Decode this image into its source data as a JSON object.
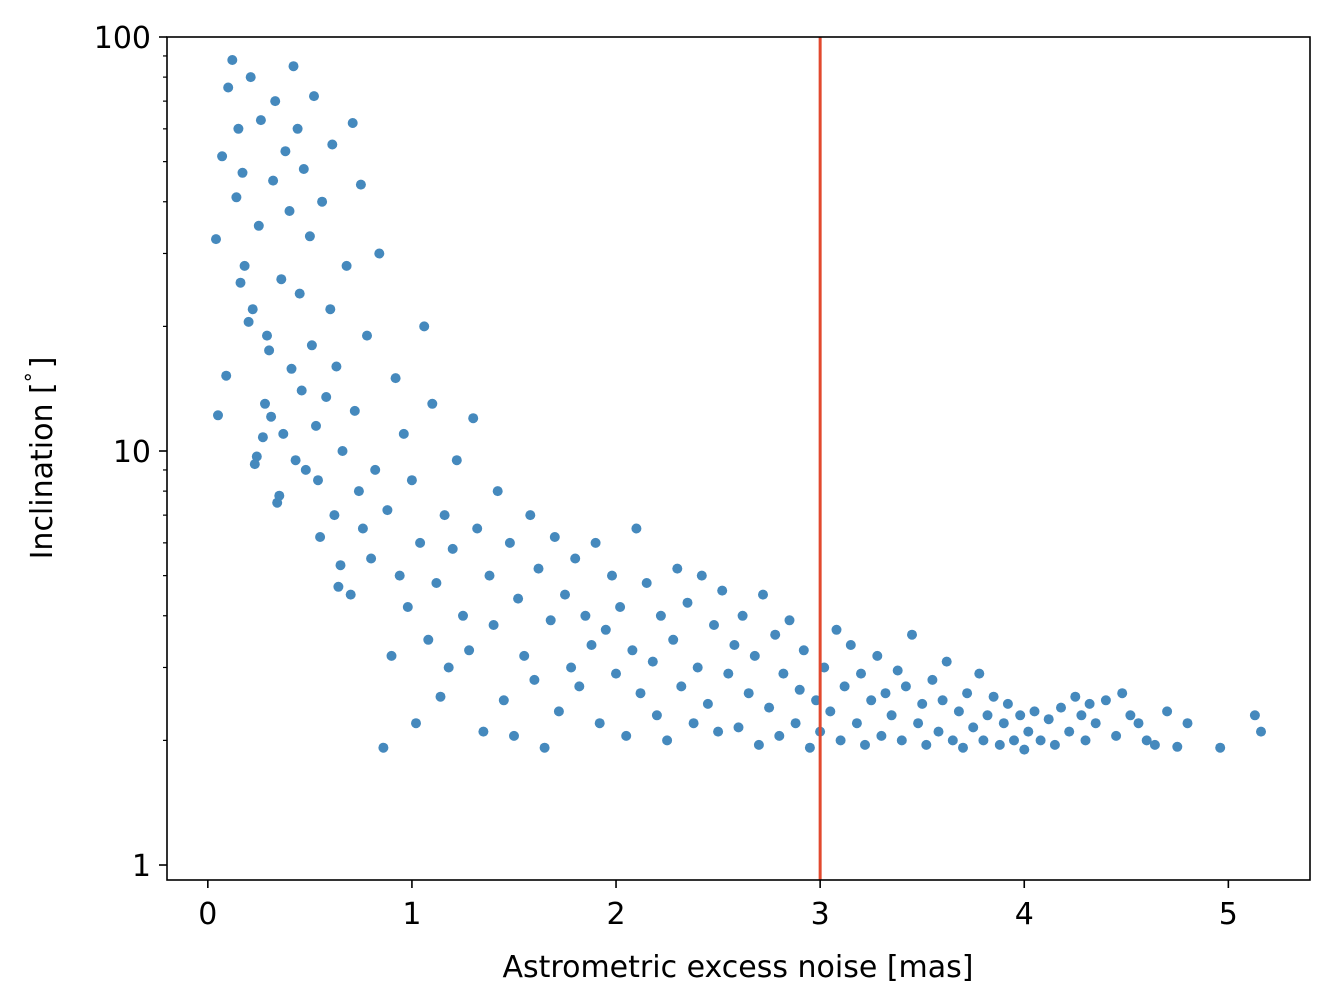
{
  "chart_data": {
    "type": "scatter",
    "xlabel": "Astrometric excess noise [mas]",
    "ylabel": "Inclination [$^\\circ$]",
    "ylabel_parts": {
      "main": "Inclination [",
      "deg": "°",
      "close": "]"
    },
    "xlim": [
      -0.2,
      5.4
    ],
    "ylim": [
      0.92,
      100
    ],
    "yscale": "log",
    "xticks": [
      0,
      1,
      2,
      3,
      4,
      5
    ],
    "xtick_labels": [
      "0",
      "1",
      "2",
      "3",
      "4",
      "5"
    ],
    "yticks": [
      1,
      10,
      100
    ],
    "ytick_labels": [
      "1",
      "10",
      "100"
    ],
    "grid": false,
    "marker_color": "#4589bd",
    "vline": {
      "x": 3.0,
      "color": "#e2492e"
    },
    "series": [
      {
        "points": [
          [
            0.05,
            12.2
          ],
          [
            0.04,
            32.5
          ],
          [
            0.07,
            51.5
          ],
          [
            0.09,
            15.2
          ],
          [
            0.1,
            75.5
          ],
          [
            0.12,
            88.0
          ],
          [
            0.14,
            41.0
          ],
          [
            0.15,
            60.0
          ],
          [
            0.16,
            25.5
          ],
          [
            0.17,
            47.0
          ],
          [
            0.18,
            28.0
          ],
          [
            0.2,
            20.5
          ],
          [
            0.21,
            80.0
          ],
          [
            0.22,
            22.0
          ],
          [
            0.23,
            9.3
          ],
          [
            0.24,
            9.7
          ],
          [
            0.25,
            35.0
          ],
          [
            0.26,
            63.0
          ],
          [
            0.27,
            10.8
          ],
          [
            0.28,
            13.0
          ],
          [
            0.29,
            19.0
          ],
          [
            0.3,
            17.5
          ],
          [
            0.31,
            12.1
          ],
          [
            0.32,
            45.0
          ],
          [
            0.33,
            70.0
          ],
          [
            0.34,
            7.5
          ],
          [
            0.35,
            7.8
          ],
          [
            0.36,
            26.0
          ],
          [
            0.37,
            11.0
          ],
          [
            0.38,
            53.0
          ],
          [
            0.4,
            38.0
          ],
          [
            0.41,
            15.8
          ],
          [
            0.42,
            85.0
          ],
          [
            0.43,
            9.5
          ],
          [
            0.44,
            60.0
          ],
          [
            0.45,
            24.0
          ],
          [
            0.46,
            14.0
          ],
          [
            0.47,
            48.0
          ],
          [
            0.48,
            9.0
          ],
          [
            0.5,
            33.0
          ],
          [
            0.51,
            18.0
          ],
          [
            0.52,
            72.0
          ],
          [
            0.53,
            11.5
          ],
          [
            0.54,
            8.5
          ],
          [
            0.55,
            6.2
          ],
          [
            0.56,
            40.0
          ],
          [
            0.58,
            13.5
          ],
          [
            0.6,
            22.0
          ],
          [
            0.61,
            55.0
          ],
          [
            0.62,
            7.0
          ],
          [
            0.63,
            16.0
          ],
          [
            0.64,
            4.7
          ],
          [
            0.65,
            5.3
          ],
          [
            0.66,
            10.0
          ],
          [
            0.68,
            28.0
          ],
          [
            0.7,
            4.5
          ],
          [
            0.71,
            62.0
          ],
          [
            0.72,
            12.5
          ],
          [
            0.74,
            8.0
          ],
          [
            0.75,
            44.0
          ],
          [
            0.76,
            6.5
          ],
          [
            0.78,
            19.0
          ],
          [
            0.8,
            5.5
          ],
          [
            0.82,
            9.0
          ],
          [
            0.84,
            30.0
          ],
          [
            0.86,
            1.92
          ],
          [
            0.88,
            7.2
          ],
          [
            0.9,
            3.2
          ],
          [
            0.92,
            15.0
          ],
          [
            0.94,
            5.0
          ],
          [
            0.96,
            11.0
          ],
          [
            0.98,
            4.2
          ],
          [
            1.0,
            8.5
          ],
          [
            1.02,
            2.2
          ],
          [
            1.04,
            6.0
          ],
          [
            1.06,
            20.0
          ],
          [
            1.08,
            3.5
          ],
          [
            1.1,
            13.0
          ],
          [
            1.12,
            4.8
          ],
          [
            1.14,
            2.55
          ],
          [
            1.16,
            7.0
          ],
          [
            1.18,
            3.0
          ],
          [
            1.2,
            5.8
          ],
          [
            1.22,
            9.5
          ],
          [
            1.25,
            4.0
          ],
          [
            1.28,
            3.3
          ],
          [
            1.3,
            12.0
          ],
          [
            1.32,
            6.5
          ],
          [
            1.35,
            2.1
          ],
          [
            1.38,
            5.0
          ],
          [
            1.4,
            3.8
          ],
          [
            1.42,
            8.0
          ],
          [
            1.45,
            2.5
          ],
          [
            1.48,
            6.0
          ],
          [
            1.5,
            2.05
          ],
          [
            1.52,
            4.4
          ],
          [
            1.55,
            3.2
          ],
          [
            1.58,
            7.0
          ],
          [
            1.6,
            2.8
          ],
          [
            1.62,
            5.2
          ],
          [
            1.65,
            1.92
          ],
          [
            1.68,
            3.9
          ],
          [
            1.7,
            6.2
          ],
          [
            1.72,
            2.35
          ],
          [
            1.75,
            4.5
          ],
          [
            1.78,
            3.0
          ],
          [
            1.8,
            5.5
          ],
          [
            1.82,
            2.7
          ],
          [
            1.85,
            4.0
          ],
          [
            1.88,
            3.4
          ],
          [
            1.9,
            6.0
          ],
          [
            1.92,
            2.2
          ],
          [
            1.95,
            3.7
          ],
          [
            1.98,
            5.0
          ],
          [
            2.0,
            2.9
          ],
          [
            2.02,
            4.2
          ],
          [
            2.05,
            2.05
          ],
          [
            2.08,
            3.3
          ],
          [
            2.1,
            6.5
          ],
          [
            2.12,
            2.6
          ],
          [
            2.15,
            4.8
          ],
          [
            2.18,
            3.1
          ],
          [
            2.2,
            2.3
          ],
          [
            2.22,
            4.0
          ],
          [
            2.25,
            2.0
          ],
          [
            2.28,
            3.5
          ],
          [
            2.3,
            5.2
          ],
          [
            2.32,
            2.7
          ],
          [
            2.35,
            4.3
          ],
          [
            2.38,
            2.2
          ],
          [
            2.4,
            3.0
          ],
          [
            2.42,
            5.0
          ],
          [
            2.45,
            2.45
          ],
          [
            2.48,
            3.8
          ],
          [
            2.5,
            2.1
          ],
          [
            2.52,
            4.6
          ],
          [
            2.55,
            2.9
          ],
          [
            2.58,
            3.4
          ],
          [
            2.6,
            2.15
          ],
          [
            2.62,
            4.0
          ],
          [
            2.65,
            2.6
          ],
          [
            2.68,
            3.2
          ],
          [
            2.7,
            1.95
          ],
          [
            2.72,
            4.5
          ],
          [
            2.75,
            2.4
          ],
          [
            2.78,
            3.6
          ],
          [
            2.8,
            2.05
          ],
          [
            2.82,
            2.9
          ],
          [
            2.85,
            3.9
          ],
          [
            2.88,
            2.2
          ],
          [
            2.9,
            2.65
          ],
          [
            2.92,
            3.3
          ],
          [
            2.95,
            1.92
          ],
          [
            2.98,
            2.5
          ],
          [
            3.0,
            2.1
          ],
          [
            3.02,
            3.0
          ],
          [
            3.05,
            2.35
          ],
          [
            3.08,
            3.7
          ],
          [
            3.1,
            2.0
          ],
          [
            3.12,
            2.7
          ],
          [
            3.15,
            3.4
          ],
          [
            3.18,
            2.2
          ],
          [
            3.2,
            2.9
          ],
          [
            3.22,
            1.95
          ],
          [
            3.25,
            2.5
          ],
          [
            3.28,
            3.2
          ],
          [
            3.3,
            2.05
          ],
          [
            3.32,
            2.6
          ],
          [
            3.35,
            2.3
          ],
          [
            3.38,
            2.95
          ],
          [
            3.4,
            2.0
          ],
          [
            3.42,
            2.7
          ],
          [
            3.45,
            3.6
          ],
          [
            3.48,
            2.2
          ],
          [
            3.5,
            2.45
          ],
          [
            3.52,
            1.95
          ],
          [
            3.55,
            2.8
          ],
          [
            3.58,
            2.1
          ],
          [
            3.6,
            2.5
          ],
          [
            3.62,
            3.1
          ],
          [
            3.65,
            2.0
          ],
          [
            3.68,
            2.35
          ],
          [
            3.7,
            1.92
          ],
          [
            3.72,
            2.6
          ],
          [
            3.75,
            2.15
          ],
          [
            3.78,
            2.9
          ],
          [
            3.8,
            2.0
          ],
          [
            3.82,
            2.3
          ],
          [
            3.85,
            2.55
          ],
          [
            3.88,
            1.95
          ],
          [
            3.9,
            2.2
          ],
          [
            3.92,
            2.45
          ],
          [
            3.95,
            2.0
          ],
          [
            3.98,
            2.3
          ],
          [
            4.0,
            1.9
          ],
          [
            4.02,
            2.1
          ],
          [
            4.05,
            2.35
          ],
          [
            4.08,
            2.0
          ],
          [
            4.12,
            2.25
          ],
          [
            4.15,
            1.95
          ],
          [
            4.18,
            2.4
          ],
          [
            4.22,
            2.1
          ],
          [
            4.25,
            2.55
          ],
          [
            4.28,
            2.3
          ],
          [
            4.3,
            2.0
          ],
          [
            4.35,
            2.2
          ],
          [
            4.4,
            2.5
          ],
          [
            4.45,
            2.05
          ],
          [
            4.48,
            2.6
          ],
          [
            4.52,
            2.3
          ],
          [
            4.56,
            2.2
          ],
          [
            4.6,
            2.0
          ],
          [
            4.64,
            1.95
          ],
          [
            4.7,
            2.35
          ],
          [
            4.75,
            1.93
          ],
          [
            4.8,
            2.2
          ],
          [
            4.96,
            1.92
          ],
          [
            5.13,
            2.3
          ],
          [
            5.16,
            2.1
          ],
          [
            4.32,
            2.45
          ]
        ]
      }
    ]
  }
}
